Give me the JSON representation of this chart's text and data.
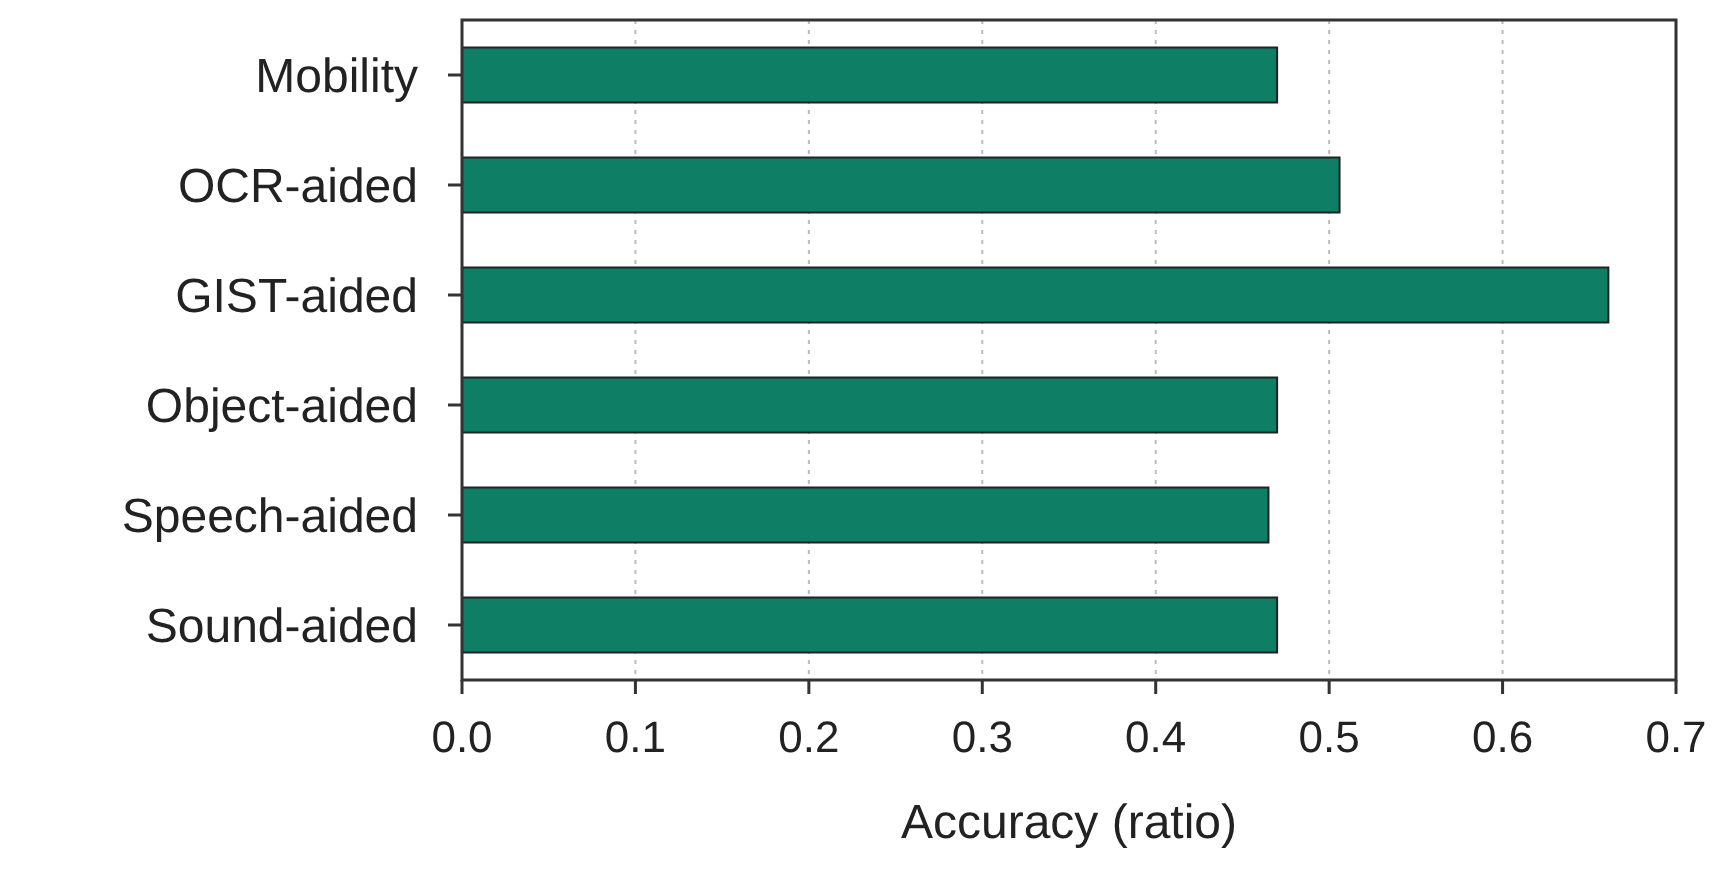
{
  "chart_data": {
    "type": "bar",
    "orientation": "horizontal",
    "xlabel": "Accuracy (ratio)",
    "categories": [
      "Mobility",
      "OCR-aided",
      "GIST-aided",
      "Object-aided",
      "Speech-aided",
      "Sound-aided"
    ],
    "values": [
      0.47,
      0.506,
      0.661,
      0.47,
      0.465,
      0.47
    ],
    "color": "#0e7e65",
    "xlim": [
      0,
      0.7
    ],
    "xticks": [
      {
        "value": 0,
        "label": "0.0"
      },
      0.1,
      0.2,
      0.3,
      0.4,
      0.5,
      0.6,
      0.7
    ],
    "grid": "x"
  }
}
